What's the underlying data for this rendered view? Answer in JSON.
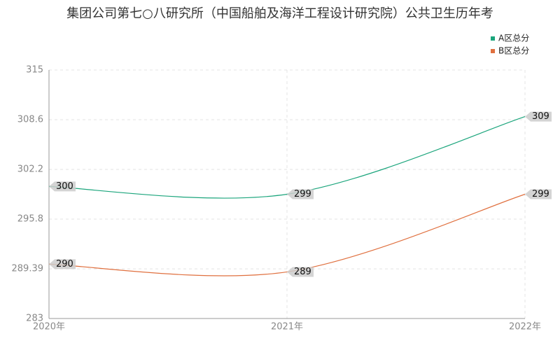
{
  "chart_data": {
    "type": "line",
    "title": "集团公司第七○八研究所（中国船舶及海洋工程设计研究院）公共卫生历年考",
    "categories": [
      "2020年",
      "2021年",
      "2022年"
    ],
    "series": [
      {
        "name": "A区总分",
        "color": "#1ba57c",
        "values": [
          300,
          299,
          309
        ]
      },
      {
        "name": "B区总分",
        "color": "#e0703f",
        "values": [
          290,
          289,
          299
        ]
      }
    ],
    "ylim": [
      283,
      315
    ],
    "yticks": [
      283,
      289.39,
      295.8,
      302.2,
      308.6,
      315
    ],
    "grid": true,
    "legend": "top-right"
  }
}
